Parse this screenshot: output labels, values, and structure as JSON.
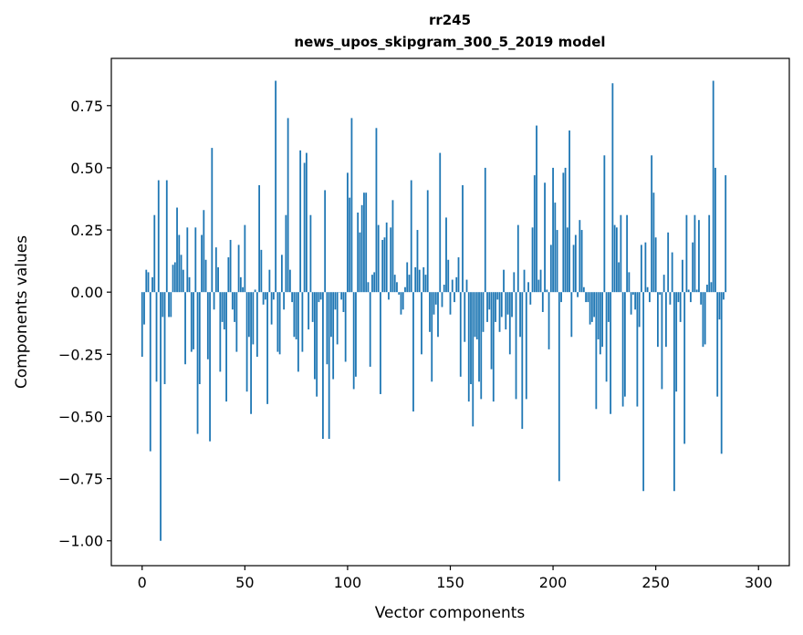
{
  "chart_data": {
    "type": "bar",
    "title": "rr245",
    "subtitle": "news_upos_skipgram_300_5_2019 model",
    "xlabel": "Vector components",
    "ylabel": "Components values",
    "xlim": [
      -15,
      315
    ],
    "ylim": [
      -1.1,
      0.94
    ],
    "xticks": [
      0,
      50,
      100,
      150,
      200,
      250,
      300
    ],
    "yticks": [
      -1.0,
      -0.75,
      -0.5,
      -0.25,
      0.0,
      0.25,
      0.5,
      0.75
    ],
    "ytick_labels": [
      "−1.00",
      "−0.75",
      "−0.50",
      "−0.25",
      "0.00",
      "0.25",
      "0.50",
      "0.75"
    ],
    "bar_color": "#1f77b4",
    "grid": false,
    "values": [
      -0.26,
      -0.13,
      0.09,
      0.08,
      -0.64,
      0.06,
      0.31,
      -0.36,
      0.45,
      -1.0,
      -0.1,
      -0.37,
      0.45,
      -0.1,
      -0.1,
      0.11,
      0.12,
      0.34,
      0.23,
      0.15,
      0.09,
      -0.29,
      0.26,
      0.06,
      -0.24,
      -0.23,
      0.26,
      -0.57,
      -0.37,
      0.23,
      0.33,
      0.13,
      -0.27,
      -0.6,
      0.58,
      -0.07,
      0.18,
      0.1,
      -0.32,
      -0.12,
      -0.15,
      -0.44,
      0.14,
      0.21,
      -0.07,
      -0.12,
      -0.24,
      0.19,
      0.06,
      0.02,
      0.27,
      -0.4,
      -0.18,
      -0.49,
      -0.21,
      0.01,
      -0.26,
      0.43,
      0.17,
      -0.05,
      -0.03,
      -0.45,
      0.09,
      -0.13,
      -0.03,
      0.85,
      -0.24,
      -0.25,
      0.15,
      -0.07,
      0.31,
      0.7,
      0.09,
      -0.04,
      -0.18,
      -0.19,
      -0.32,
      0.57,
      -0.24,
      0.52,
      0.56,
      -0.15,
      0.31,
      -0.12,
      -0.35,
      -0.42,
      -0.04,
      -0.03,
      -0.59,
      0.41,
      -0.29,
      -0.59,
      -0.18,
      -0.35,
      -0.07,
      -0.21,
      0.0,
      -0.03,
      -0.08,
      -0.28,
      0.48,
      0.38,
      0.7,
      -0.39,
      -0.34,
      0.32,
      0.24,
      0.35,
      0.4,
      0.4,
      0.04,
      -0.3,
      0.07,
      0.08,
      0.66,
      0.27,
      -0.41,
      0.21,
      0.22,
      0.28,
      -0.03,
      0.26,
      0.37,
      0.07,
      0.04,
      -0.01,
      -0.09,
      -0.07,
      0.02,
      0.12,
      0.07,
      0.45,
      -0.48,
      0.1,
      0.25,
      0.09,
      -0.25,
      0.1,
      0.07,
      0.41,
      -0.16,
      -0.36,
      -0.09,
      -0.05,
      -0.18,
      0.56,
      -0.06,
      0.03,
      0.3,
      0.13,
      -0.09,
      0.05,
      -0.04,
      0.06,
      0.14,
      -0.34,
      0.43,
      -0.2,
      0.05,
      -0.44,
      -0.37,
      -0.54,
      -0.18,
      -0.19,
      -0.36,
      -0.43,
      -0.16,
      0.5,
      -0.12,
      -0.07,
      -0.31,
      -0.44,
      -0.12,
      -0.03,
      -0.16,
      -0.1,
      0.09,
      -0.15,
      -0.09,
      -0.25,
      -0.1,
      0.08,
      -0.43,
      0.27,
      -0.18,
      -0.55,
      0.09,
      -0.43,
      0.04,
      -0.05,
      0.26,
      0.47,
      0.67,
      0.05,
      0.09,
      -0.08,
      0.44,
      0.01,
      -0.23,
      0.19,
      0.5,
      0.36,
      0.25,
      -0.76,
      -0.04,
      0.48,
      0.5,
      0.26,
      0.65,
      -0.18,
      0.19,
      0.23,
      -0.02,
      0.29,
      0.25,
      0.02,
      -0.04,
      -0.04,
      -0.13,
      -0.12,
      -0.1,
      -0.47,
      -0.19,
      -0.25,
      -0.22,
      0.55,
      -0.36,
      -0.12,
      -0.49,
      0.84,
      0.27,
      0.26,
      0.12,
      0.31,
      -0.46,
      -0.42,
      0.31,
      0.08,
      -0.09,
      -0.01,
      -0.07,
      -0.46,
      -0.14,
      0.19,
      -0.8,
      0.2,
      0.02,
      -0.04,
      0.55,
      0.4,
      0.22,
      -0.22,
      -0.01,
      -0.39,
      0.07,
      -0.22,
      0.24,
      -0.05,
      0.16,
      -0.8,
      -0.4,
      -0.04,
      -0.12,
      0.13,
      -0.61,
      0.31,
      0.01,
      -0.04,
      0.2,
      0.31,
      0.01,
      0.29,
      -0.05,
      -0.22,
      -0.21,
      0.03,
      0.31,
      0.04,
      0.85,
      0.5,
      -0.42,
      -0.11,
      -0.65,
      -0.03,
      0.47
    ]
  }
}
